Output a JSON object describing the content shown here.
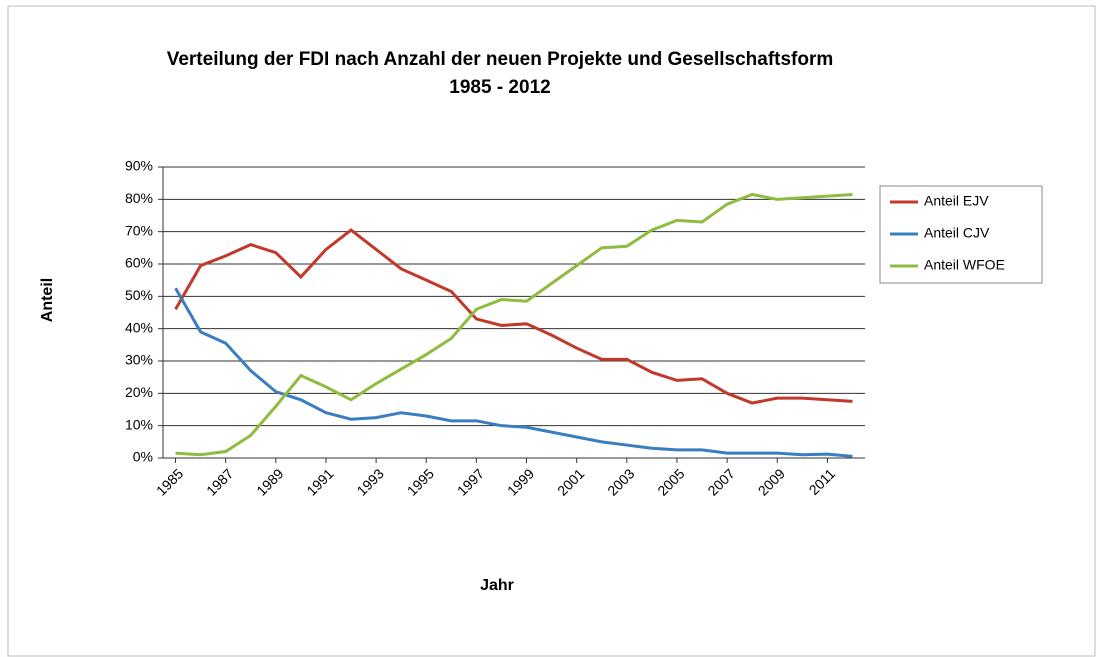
{
  "chart_data": {
    "type": "line",
    "title": "Verteilung der FDI nach Anzahl der neuen Projekte und Gesellschaftsform",
    "subtitle": "1985 - 2012",
    "x_label": "Jahr",
    "y_label": "Anteil",
    "x": [
      1985,
      1986,
      1987,
      1988,
      1989,
      1990,
      1991,
      1992,
      1993,
      1994,
      1995,
      1996,
      1997,
      1998,
      1999,
      2000,
      2001,
      2002,
      2003,
      2004,
      2005,
      2006,
      2007,
      2008,
      2009,
      2010,
      2011,
      2012
    ],
    "series": [
      {
        "name": "Anteil EJV",
        "color": "#c0392b",
        "values": [
          46,
          59.5,
          62.5,
          66,
          63.5,
          56,
          64.5,
          70.5,
          64.5,
          58.5,
          55,
          51.5,
          43,
          41,
          41.5,
          38,
          34,
          30.5,
          30.5,
          26.5,
          24,
          24.5,
          20,
          17,
          18.5,
          18.5,
          18,
          17.5
        ]
      },
      {
        "name": "Anteil CJV",
        "color": "#3a7dc0",
        "values": [
          52.5,
          39,
          35.5,
          27,
          20.5,
          18,
          14,
          12,
          12.5,
          14,
          13,
          11.5,
          11.5,
          10,
          9.5,
          8,
          6.5,
          5,
          4,
          3,
          2.5,
          2.5,
          1.5,
          1.5,
          1.5,
          1,
          1.2,
          0.5
        ]
      },
      {
        "name": "Anteil WFOE",
        "color": "#8fbc3f",
        "values": [
          1.5,
          1,
          2,
          7,
          16,
          25.5,
          22,
          18,
          23,
          27.5,
          32,
          37,
          46,
          49,
          48.5,
          54,
          59.5,
          65,
          65.5,
          70.5,
          73.5,
          73,
          78.5,
          81.5,
          80,
          80.5,
          81,
          81.5
        ]
      }
    ],
    "xlim": [
      1984.5,
      2012.5
    ],
    "xticks": [
      1985,
      1987,
      1989,
      1991,
      1993,
      1995,
      1997,
      1999,
      2001,
      2003,
      2005,
      2007,
      2009,
      2011
    ],
    "ylim": [
      0,
      90
    ],
    "yticks": [
      {
        "value": 0,
        "label": "0%"
      },
      {
        "value": 10,
        "label": "10%"
      },
      {
        "value": 20,
        "label": "20%"
      },
      {
        "value": 30,
        "label": "30%"
      },
      {
        "value": 40,
        "label": "40%"
      },
      {
        "value": 50,
        "label": "50%"
      },
      {
        "value": 60,
        "label": "60%"
      },
      {
        "value": 70,
        "label": "70%"
      },
      {
        "value": 80,
        "label": "80%"
      },
      {
        "value": 90,
        "label": "90%"
      }
    ],
    "grid": true,
    "legend": "right"
  }
}
